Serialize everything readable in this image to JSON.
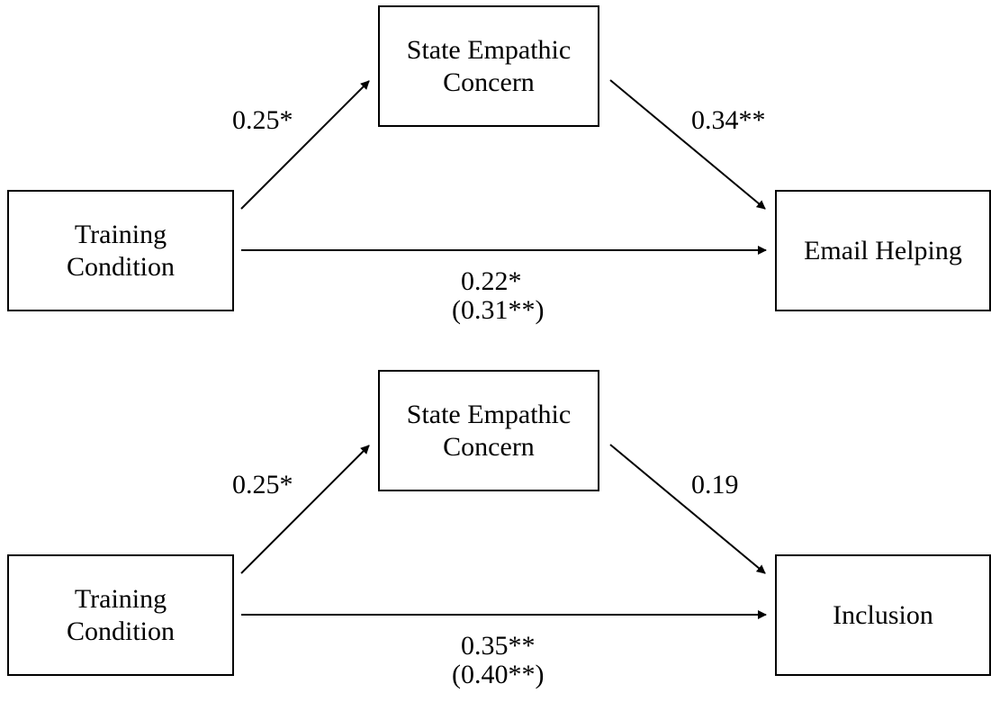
{
  "diagrams": [
    {
      "predictor": {
        "line1": "Training",
        "line2": "Condition"
      },
      "mediator": {
        "line1": "State Empathic",
        "line2": "Concern"
      },
      "outcome": {
        "line1": "Email Helping",
        "line2": ""
      },
      "path_a": "0.25*",
      "path_b": "0.34**",
      "path_c_direct": "0.22*",
      "path_c_total": "(0.31**)"
    },
    {
      "predictor": {
        "line1": "Training",
        "line2": "Condition"
      },
      "mediator": {
        "line1": "State Empathic",
        "line2": "Concern"
      },
      "outcome": {
        "line1": "Inclusion",
        "line2": ""
      },
      "path_a": "0.25*",
      "path_b": "0.19",
      "path_c_direct": "0.35**",
      "path_c_total": "(0.40**)"
    }
  ],
  "colors": {
    "stroke": "#000000",
    "background": "#ffffff"
  }
}
